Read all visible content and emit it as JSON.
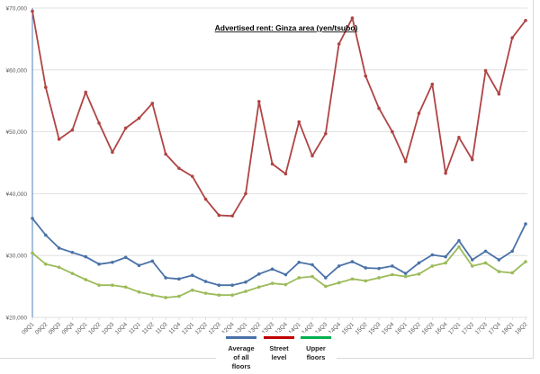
{
  "chart_data": {
    "type": "line",
    "title": "Advertised rent: Ginza area (yen/tsubo)",
    "xlabel": "",
    "ylabel": "",
    "ylim": [
      20000,
      70000
    ],
    "yticks": [
      "¥20,000",
      "¥30,000",
      "¥40,000",
      "¥50,000",
      "¥60,000",
      "¥70,000"
    ],
    "ytick_values": [
      20000,
      30000,
      40000,
      50000,
      60000,
      70000
    ],
    "grid": true,
    "legend_position": "bottom",
    "categories": [
      "09Q1",
      "09Q2",
      "09Q3",
      "09Q4",
      "10Q1",
      "10Q2",
      "10Q3",
      "10Q4",
      "11Q1",
      "11Q2",
      "11Q3",
      "11Q4",
      "12Q1",
      "12Q2",
      "12Q3",
      "12Q4",
      "13Q1",
      "13Q2",
      "13Q3",
      "13Q4",
      "14Q1",
      "14Q2",
      "14Q3",
      "14Q4",
      "15Q1",
      "15Q2",
      "15Q3",
      "15Q4",
      "16Q1",
      "16Q2",
      "16Q3",
      "16Q4",
      "17Q1",
      "17Q2",
      "17Q3",
      "17Q4",
      "18Q1",
      "18Q2"
    ],
    "series": [
      {
        "name": "Average of all floors",
        "color": "#4a72a8",
        "values": [
          36000,
          33300,
          31200,
          30500,
          29800,
          28600,
          28900,
          29700,
          28400,
          29100,
          26400,
          26200,
          26800,
          25800,
          25200,
          25200,
          25700,
          27000,
          27800,
          26900,
          28900,
          28500,
          26400,
          28300,
          29000,
          28000,
          27900,
          28300,
          27100,
          28800,
          30100,
          29800,
          32400,
          29300,
          30700,
          29300,
          30700,
          35100
        ]
      },
      {
        "name": "Street level",
        "color": "#b04444",
        "values": [
          69500,
          57200,
          48800,
          50300,
          56400,
          51400,
          46700,
          50600,
          52200,
          54600,
          46400,
          44100,
          42800,
          39100,
          36500,
          36400,
          40000,
          54900,
          44800,
          43200,
          51600,
          46100,
          49700,
          64200,
          68400,
          59000,
          53800,
          50000,
          45200,
          53000,
          57700,
          43300,
          49100,
          45500,
          59900,
          56100,
          65200,
          68000
        ]
      },
      {
        "name": "Upper floors",
        "color": "#9bbb59",
        "values": [
          30400,
          28600,
          28100,
          27100,
          26100,
          25200,
          25200,
          24900,
          24100,
          23600,
          23200,
          23400,
          24400,
          23900,
          23600,
          23600,
          24200,
          24900,
          25500,
          25300,
          26400,
          26600,
          25000,
          25600,
          26200,
          25900,
          26400,
          26900,
          26600,
          27000,
          28300,
          28800,
          31400,
          28300,
          28800,
          27400,
          27200,
          29000
        ]
      }
    ],
    "legend": [
      {
        "label_line1": "Average",
        "label_line2": "of all floors",
        "color": "#4a72a8"
      },
      {
        "label_line1": "Street",
        "label_line2": "level",
        "color": "#c00000"
      },
      {
        "label_line1": "Upper",
        "label_line2": "floors",
        "color": "#00b050"
      }
    ]
  }
}
